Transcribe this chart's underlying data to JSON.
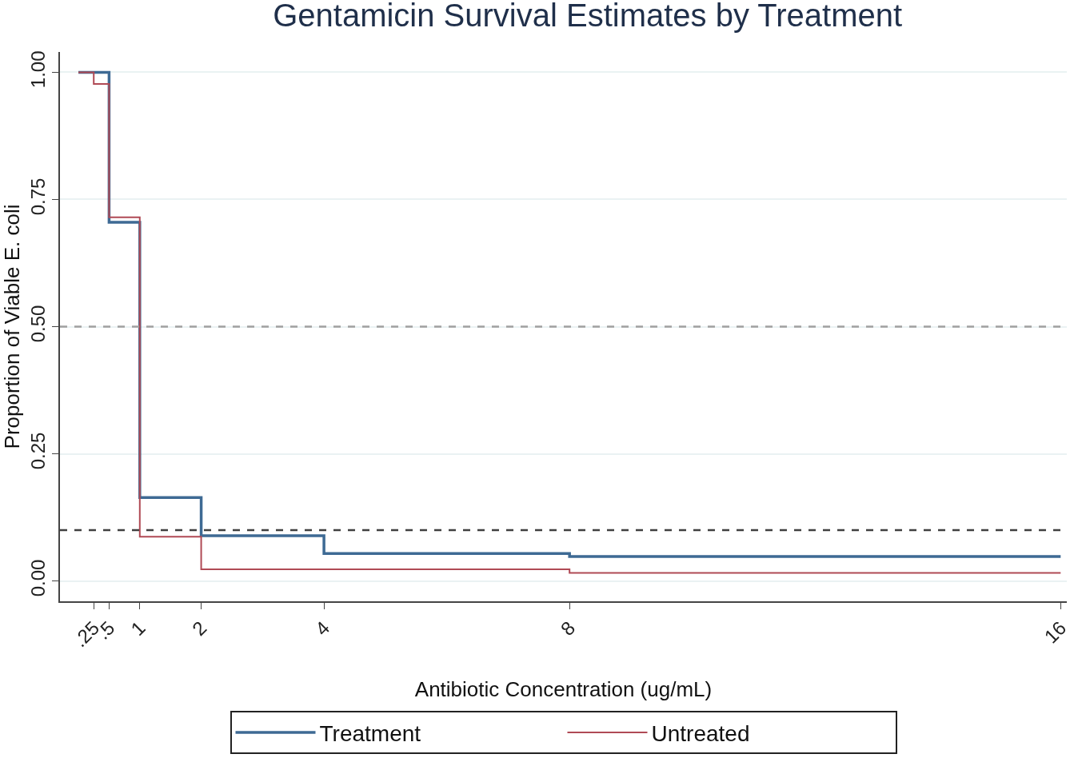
{
  "chart_data": {
    "type": "step",
    "title": "Gentamicin Survival Estimates by Treatment",
    "xlabel": "Antibiotic Concentration (ug/mL)",
    "ylabel": "Proportion of Viable E. coli",
    "series": [
      {
        "name": "Treatment",
        "color": "#3e6a94",
        "x": [
          0,
          0.5,
          1,
          2,
          4,
          8,
          16
        ],
        "values": [
          1.0,
          0.705,
          0.164,
          0.089,
          0.054,
          0.048,
          0.048
        ]
      },
      {
        "name": "Untreated",
        "color": "#b04a55",
        "x": [
          0,
          0.25,
          0.5,
          1,
          2,
          8,
          16
        ],
        "values": [
          1.0,
          0.977,
          0.715,
          0.087,
          0.023,
          0.016,
          0.016
        ]
      }
    ],
    "xlim": [
      -0.3,
      16.1
    ],
    "ylim": [
      -0.04,
      1.04
    ],
    "xticks": [
      {
        "value": 0.25,
        "label": ".25"
      },
      {
        "value": 0.5,
        "label": ".5"
      },
      1,
      2,
      4,
      8,
      16
    ],
    "yticks": [
      {
        "value": 0,
        "label": "0.00"
      },
      {
        "value": 0.25,
        "label": "0.25"
      },
      {
        "value": 0.5,
        "label": "0.50"
      },
      {
        "value": 0.75,
        "label": "0.75"
      },
      {
        "value": 1,
        "label": "1.00"
      }
    ],
    "ref_lines": [
      {
        "axis": "y",
        "value": 0.5,
        "label": null,
        "color": "#a0a0a0",
        "line_style": "dashed"
      },
      {
        "axis": "y",
        "value": 0.1,
        "label": null,
        "color": "#404040",
        "line_style": "dashed"
      }
    ],
    "grid": "y",
    "legend": "bottom"
  }
}
